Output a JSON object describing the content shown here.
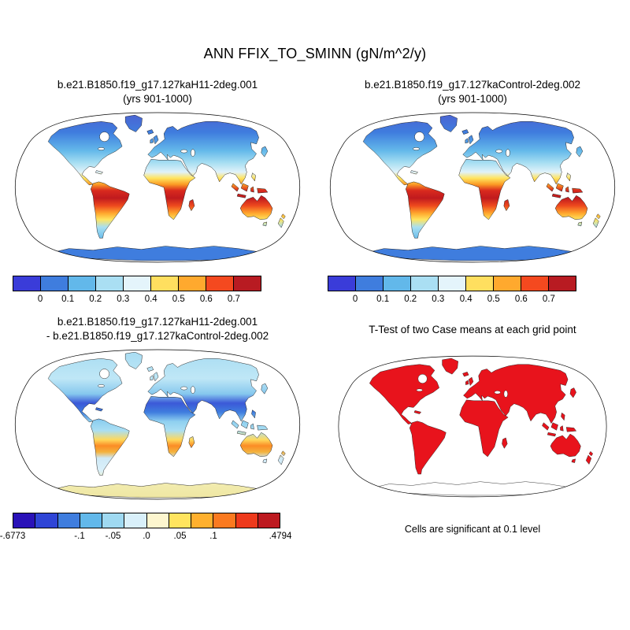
{
  "title": "ANN FFIX_TO_SMINN (gN/m^2/y)",
  "panels": {
    "case1": {
      "title_line1": "b.e21.B1850.f19_g17.127kaH11-2deg.001",
      "title_line2": "(yrs 901-1000)"
    },
    "case2": {
      "title_line1": "b.e21.B1850.f19_g17.127kaControl-2deg.002",
      "title_line2": "(yrs 901-1000)"
    },
    "diff": {
      "title_line1": "b.e21.B1850.f19_g17.127kaH11-2deg.001",
      "title_line2": "- b.e21.B1850.f19_g17.127kaControl-2deg.002"
    },
    "ttest": {
      "title": "T-Test of two Case means at each grid point",
      "caption": "Cells are significant at 0.1 level"
    }
  },
  "colors": {
    "significant": "#e8131c",
    "ocean": "#ffffff",
    "coastline": "#1a1a1a"
  },
  "colorbars": {
    "top": {
      "ticks": [
        "0",
        "0.1",
        "0.2",
        "0.3",
        "0.4",
        "0.5",
        "0.6",
        "0.7"
      ],
      "tick_pos": [
        0.111,
        0.222,
        0.333,
        0.444,
        0.556,
        0.667,
        0.778,
        0.889
      ],
      "colors": [
        "#3a3cd9",
        "#3f7dde",
        "#62b8ea",
        "#aadff3",
        "#e4f4fb",
        "#ffdf5f",
        "#ffa92e",
        "#f4491f",
        "#b81b22"
      ]
    },
    "diff": {
      "ticks": [
        "-.6773",
        "-.1",
        "-.05",
        ".0",
        ".05",
        ".1",
        ".4794"
      ],
      "tick_pos": [
        0,
        0.25,
        0.375,
        0.5,
        0.625,
        0.75,
        1
      ],
      "colors": [
        "#2a12b8",
        "#2f45d6",
        "#3f7dde",
        "#62b8ea",
        "#9fd9f1",
        "#d9f0fa",
        "#fdf6cf",
        "#ffe45f",
        "#ffb02e",
        "#fb7a20",
        "#ee3a1c",
        "#bd1a20"
      ]
    }
  },
  "map_gradients": {
    "case": [
      [
        0,
        "#4d5fd0"
      ],
      [
        14,
        "#3f7dde"
      ],
      [
        26,
        "#64b9ea"
      ],
      [
        34,
        "#a8dff2"
      ],
      [
        40,
        "#e0f2fa"
      ],
      [
        44,
        "#ffe45f"
      ],
      [
        48,
        "#fb9b25"
      ],
      [
        52,
        "#d92a1e"
      ],
      [
        57,
        "#c01a1e"
      ],
      [
        62,
        "#ee4a1e"
      ],
      [
        67,
        "#ffa92e"
      ],
      [
        71,
        "#ffe45f"
      ],
      [
        76,
        "#a8dff2"
      ],
      [
        84,
        "#64b9ea"
      ],
      [
        90,
        "#3f7dde"
      ],
      [
        100,
        "#3f7dde"
      ]
    ],
    "diff": [
      [
        0,
        "#a5dbf2"
      ],
      [
        20,
        "#bfe7f6"
      ],
      [
        30,
        "#86c8ee"
      ],
      [
        36,
        "#3b59d8"
      ],
      [
        42,
        "#3f7dde"
      ],
      [
        48,
        "#8fd0f0"
      ],
      [
        54,
        "#aadef3"
      ],
      [
        60,
        "#ffd95c"
      ],
      [
        64,
        "#fb8c25"
      ],
      [
        68,
        "#f4b23c"
      ],
      [
        72,
        "#cfe9f6"
      ],
      [
        80,
        "#daf0fa"
      ],
      [
        88,
        "#f2ecb0"
      ],
      [
        100,
        "#efe6a0"
      ]
    ]
  },
  "chart_data": [
    {
      "type": "heatmap",
      "subtype": "global-map",
      "projection": "robinson",
      "variable": "FFIX_TO_SMINN",
      "season": "ANN",
      "units": "gN/m^2/y",
      "title": "b.e21.B1850.f19_g17.127kaH11-2deg.001 (yrs 901-1000)",
      "colorbar_levels": [
        0,
        0.1,
        0.2,
        0.3,
        0.4,
        0.5,
        0.6,
        0.7
      ],
      "pattern": "low values (blue) over high-latitude land and Antarctica, high values (orange-red) over tropical land (Amazon, central Africa, India, SE Asia, N Australia)"
    },
    {
      "type": "heatmap",
      "subtype": "global-map",
      "projection": "robinson",
      "variable": "FFIX_TO_SMINN",
      "season": "ANN",
      "units": "gN/m^2/y",
      "title": "b.e21.B1850.f19_g17.127kaControl-2deg.002 (yrs 901-1000)",
      "colorbar_levels": [
        0,
        0.1,
        0.2,
        0.3,
        0.4,
        0.5,
        0.6,
        0.7
      ],
      "pattern": "same latitudinal pattern as case 1: blue high latitudes, red tropics"
    },
    {
      "type": "heatmap",
      "subtype": "global-map-difference",
      "projection": "robinson",
      "title": "b.e21.B1850.f19_g17.127kaH11-2deg.001 - b.e21.B1850.f19_g17.127kaControl-2deg.002",
      "colorbar_min": -0.6773,
      "colorbar_max": 0.4794,
      "colorbar_levels": [
        -0.1,
        -0.05,
        0,
        0.05,
        0.1
      ],
      "pattern": "mostly weak negative (light blue); strong negative (dark blue) across N Africa and S Asia; positive (yellow-red) over southern Africa, Brazil and Australia; pale yellow Antarctica"
    },
    {
      "type": "heatmap",
      "subtype": "significance-map",
      "projection": "robinson",
      "title": "T-Test of two Case means at each grid point",
      "caption": "Cells are significant at 0.1 level",
      "pattern": "nearly all land cells significant (solid red); Antarctica not significant (white)"
    }
  ]
}
